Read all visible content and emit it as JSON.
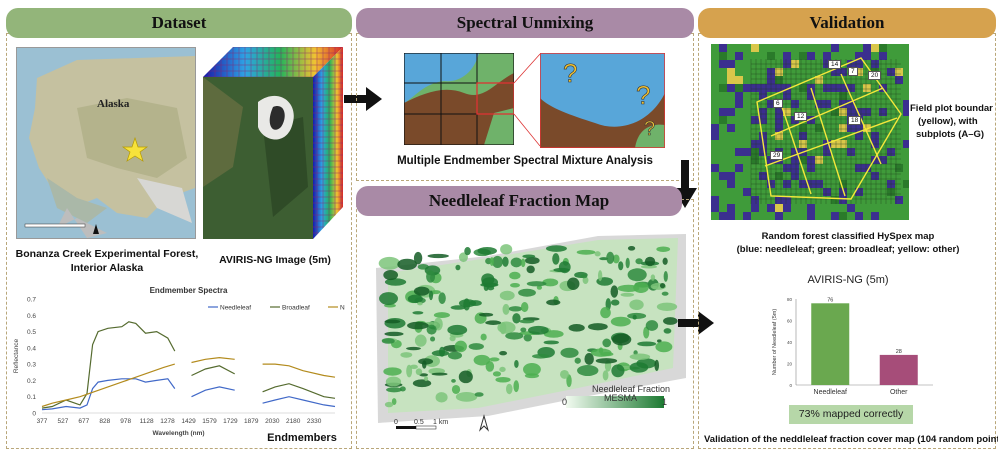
{
  "headers": {
    "dataset": "Dataset",
    "unmixing": "Spectral Unmixing",
    "validation": "Validation",
    "fraction_map": "Needleleaf Fraction Map"
  },
  "dataset": {
    "map_label": "Alaska",
    "site_caption_line1": "Bonanza Creek Experimental Forest,",
    "site_caption_line2": "Interior Alaska",
    "image_caption": "AVIRIS-NG Image (5m)",
    "endmembers_caption": "Endmembers"
  },
  "unmixing": {
    "caption": "Multiple Endmember Spectral Mixture Analysis",
    "question_mark": "?"
  },
  "fraction_map": {
    "legend_title": "Needleleaf Fraction",
    "legend_subtitle": "MESMA",
    "legend_min": "0",
    "legend_max": "1",
    "scale_0": "0",
    "scale_mid": "0.5",
    "scale_end": "1 km"
  },
  "validation": {
    "field_plot_line1": "Field plot boundar",
    "field_plot_line2": "(yellow), with",
    "field_plot_line3": "subplots (A–G)",
    "rf_line1": "Random forest classified HySpex map",
    "rf_line2": "(blue: needleleaf; green: broadleaf; yellow: other)",
    "bar_title": "AVIRIS-NG (5m)",
    "mapped_correctly": "73% mapped correctly",
    "footer": "Validation of the neddleleaf fraction cover map (104 random point",
    "plot_labels": [
      "14",
      "7",
      "20",
      "6",
      "12",
      "18",
      "29"
    ]
  },
  "colors": {
    "dataset_header": "#93b57a",
    "unmixing_header": "#a98aa6",
    "validation_header": "#d6a24e",
    "needleleaf": "#4169c8",
    "broadleaf": "#556b2f",
    "npv": "#b38b1d",
    "bar_needleleaf": "#6aa84f",
    "bar_other": "#a64d79",
    "badge": "#b6d7a8"
  },
  "chart_data": [
    {
      "type": "line",
      "title": "Endmember Spectra",
      "xlabel": "Wavelength (nm)",
      "ylabel": "Reflectance",
      "x_ticks": [
        "377",
        "527",
        "677",
        "828",
        "978",
        "1128",
        "1278",
        "1429",
        "1579",
        "1729",
        "1879",
        "2030",
        "2180",
        "2330"
      ],
      "y_ticks": [
        "0",
        "0.1",
        "0.2",
        "0.3",
        "0.4",
        "0.5",
        "0.6",
        "0.7"
      ],
      "xlim": [
        377,
        2480
      ],
      "ylim": [
        0,
        0.7
      ],
      "legend": "top-right",
      "series": [
        {
          "name": "Needleleaf",
          "segments": [
            [
              [
                377,
                0.02
              ],
              [
                450,
                0.025
              ],
              [
                550,
                0.04
              ],
              [
                650,
                0.03
              ],
              [
                700,
                0.05
              ],
              [
                740,
                0.15
              ],
              [
                780,
                0.19
              ],
              [
                850,
                0.2
              ],
              [
                950,
                0.21
              ],
              [
                1050,
                0.21
              ],
              [
                1120,
                0.19
              ],
              [
                1200,
                0.2
              ],
              [
                1280,
                0.21
              ],
              [
                1330,
                0.15
              ]
            ],
            [
              [
                1450,
                0.1
              ],
              [
                1550,
                0.14
              ],
              [
                1650,
                0.16
              ],
              [
                1760,
                0.14
              ]
            ],
            [
              [
                1960,
                0.06
              ],
              [
                2050,
                0.08
              ],
              [
                2150,
                0.1
              ],
              [
                2250,
                0.08
              ],
              [
                2400,
                0.05
              ],
              [
                2480,
                0.04
              ]
            ]
          ]
        },
        {
          "name": "Broadleaf",
          "segments": [
            [
              [
                377,
                0.03
              ],
              [
                450,
                0.04
              ],
              [
                550,
                0.08
              ],
              [
                650,
                0.05
              ],
              [
                700,
                0.12
              ],
              [
                740,
                0.42
              ],
              [
                780,
                0.5
              ],
              [
                850,
                0.52
              ],
              [
                950,
                0.53
              ],
              [
                1000,
                0.56
              ],
              [
                1050,
                0.55
              ],
              [
                1120,
                0.49
              ],
              [
                1200,
                0.5
              ],
              [
                1280,
                0.46
              ],
              [
                1330,
                0.38
              ]
            ],
            [
              [
                1450,
                0.23
              ],
              [
                1550,
                0.27
              ],
              [
                1650,
                0.29
              ],
              [
                1760,
                0.24
              ]
            ],
            [
              [
                1960,
                0.13
              ],
              [
                2050,
                0.16
              ],
              [
                2150,
                0.18
              ],
              [
                2250,
                0.15
              ],
              [
                2400,
                0.1
              ],
              [
                2480,
                0.09
              ]
            ]
          ]
        },
        {
          "name": "NPV",
          "segments": [
            [
              [
                377,
                0.04
              ],
              [
                450,
                0.06
              ],
              [
                550,
                0.08
              ],
              [
                650,
                0.1
              ],
              [
                750,
                0.13
              ],
              [
                850,
                0.16
              ],
              [
                950,
                0.19
              ],
              [
                1050,
                0.22
              ],
              [
                1150,
                0.25
              ],
              [
                1250,
                0.28
              ],
              [
                1330,
                0.3
              ]
            ],
            [
              [
                1450,
                0.31
              ],
              [
                1550,
                0.33
              ],
              [
                1650,
                0.34
              ],
              [
                1760,
                0.33
              ]
            ],
            [
              [
                1960,
                0.3
              ],
              [
                2050,
                0.3
              ],
              [
                2150,
                0.29
              ],
              [
                2250,
                0.26
              ],
              [
                2400,
                0.23
              ],
              [
                2480,
                0.22
              ]
            ]
          ]
        }
      ]
    },
    {
      "type": "bar",
      "title": "AVIRIS-NG (5m)",
      "ylabel": "Number of Needleleaf (5m)",
      "categories": [
        "Needleleaf",
        "Other"
      ],
      "values": [
        76,
        28
      ],
      "ylim": [
        0,
        80
      ],
      "y_ticks": [
        "0",
        "20",
        "40",
        "60",
        "80"
      ]
    }
  ]
}
